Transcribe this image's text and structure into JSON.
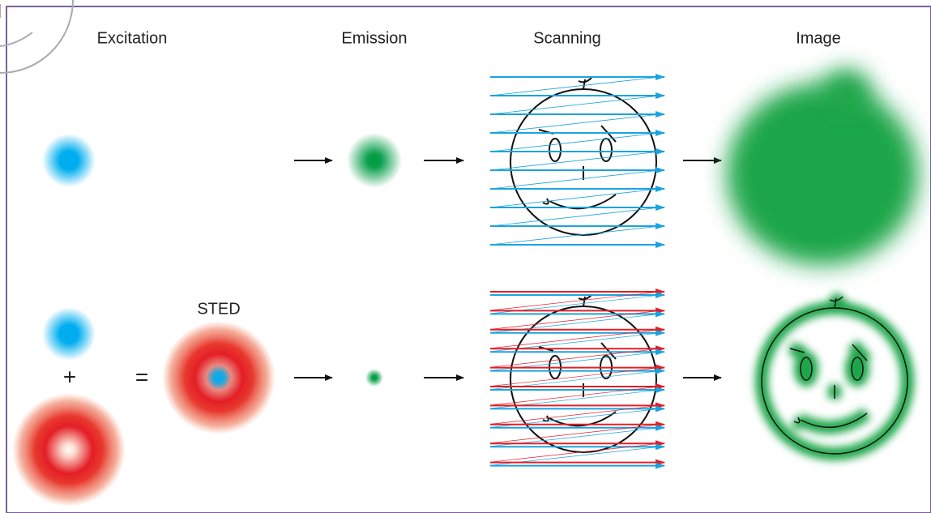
{
  "headers": {
    "excitation": "Excitation",
    "emission": "Emission",
    "scanning": "Scanning",
    "image": "Image"
  },
  "labels": {
    "sted": "STED",
    "plus": "+",
    "equals": "="
  }
}
